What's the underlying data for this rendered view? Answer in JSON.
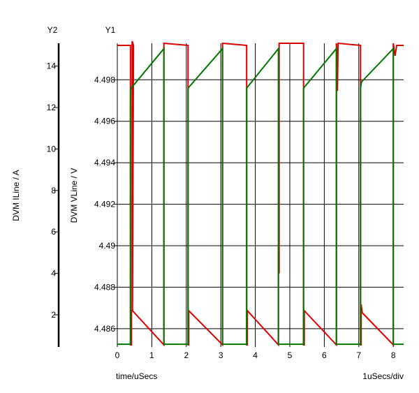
{
  "chart_data": {
    "type": "line",
    "y2_axis": {
      "title": "Y2",
      "label": "DVM ILine / A",
      "ticks": [
        2,
        4,
        6,
        8,
        10,
        12,
        14
      ],
      "range": [
        0.45,
        15.1
      ]
    },
    "y1_axis": {
      "title": "Y1",
      "label": "DVM VLine / V",
      "ticks": [
        "4.486",
        "4.488",
        "4.49",
        "4.492",
        "4.494",
        "4.496",
        "4.498"
      ],
      "range": [
        4.48512,
        4.49976
      ]
    },
    "x_axis": {
      "label": "time/uSecs",
      "scale_label": "1uSecs/div",
      "ticks": [
        0,
        1,
        2,
        3,
        4,
        5,
        6,
        7,
        8
      ],
      "range": [
        0,
        8.3
      ]
    },
    "grid": true,
    "series": [
      {
        "color": "#dd0000",
        "points": [
          [
            0,
            15.0
          ],
          [
            0.38,
            15.0
          ],
          [
            0.38,
            0.55
          ],
          [
            0.41,
            0.55
          ],
          [
            0.41,
            2.2
          ],
          [
            0.43,
            2.2
          ],
          [
            0.43,
            15.2
          ],
          [
            0.47,
            15.0
          ],
          [
            0.44,
            2.2
          ],
          [
            1.35,
            0.55
          ],
          [
            1.35,
            15.1
          ],
          [
            2.05,
            15.0
          ],
          [
            2.05,
            0.55
          ],
          [
            2.07,
            0.55
          ],
          [
            2.07,
            2.2
          ],
          [
            3.05,
            0.55
          ],
          [
            3.05,
            15.1
          ],
          [
            3.75,
            15.0
          ],
          [
            3.75,
            0.55
          ],
          [
            3.77,
            0.55
          ],
          [
            3.77,
            2.2
          ],
          [
            4.67,
            0.55
          ],
          [
            4.67,
            5.4
          ],
          [
            4.69,
            4.0
          ],
          [
            4.69,
            15.1
          ],
          [
            5.4,
            15.1
          ],
          [
            5.4,
            0.55
          ],
          [
            5.42,
            0.55
          ],
          [
            5.42,
            2.2
          ],
          [
            6.35,
            0.55
          ],
          [
            6.35,
            15.1
          ],
          [
            6.38,
            12.8
          ],
          [
            6.4,
            15.1
          ],
          [
            7.05,
            15.0
          ],
          [
            7.05,
            0.55
          ],
          [
            7.07,
            0.55
          ],
          [
            7.07,
            2.5
          ],
          [
            7.1,
            2.1
          ],
          [
            8.0,
            0.55
          ],
          [
            8.0,
            15.1
          ],
          [
            8.05,
            14.5
          ],
          [
            8.1,
            15.0
          ],
          [
            8.3,
            15.0
          ]
        ]
      },
      {
        "color": "#007700",
        "points": [
          [
            0,
            4.48525
          ],
          [
            0.38,
            4.48525
          ],
          [
            0.38,
            4.4975
          ],
          [
            0.4,
            4.4976
          ],
          [
            1.35,
            4.4995
          ],
          [
            1.35,
            4.48525
          ],
          [
            2.05,
            4.48525
          ],
          [
            2.05,
            4.4976
          ],
          [
            3.05,
            4.4995
          ],
          [
            3.05,
            4.48525
          ],
          [
            3.75,
            4.48525
          ],
          [
            3.75,
            4.4976
          ],
          [
            4.67,
            4.4995
          ],
          [
            4.67,
            4.48525
          ],
          [
            5.4,
            4.48525
          ],
          [
            5.4,
            4.4976
          ],
          [
            6.35,
            4.4995
          ],
          [
            6.35,
            4.48525
          ],
          [
            7.05,
            4.48525
          ],
          [
            7.05,
            4.4976
          ],
          [
            7.08,
            4.4979
          ],
          [
            8.0,
            4.4995
          ],
          [
            8.0,
            4.48525
          ],
          [
            8.3,
            4.48525
          ]
        ]
      }
    ]
  }
}
